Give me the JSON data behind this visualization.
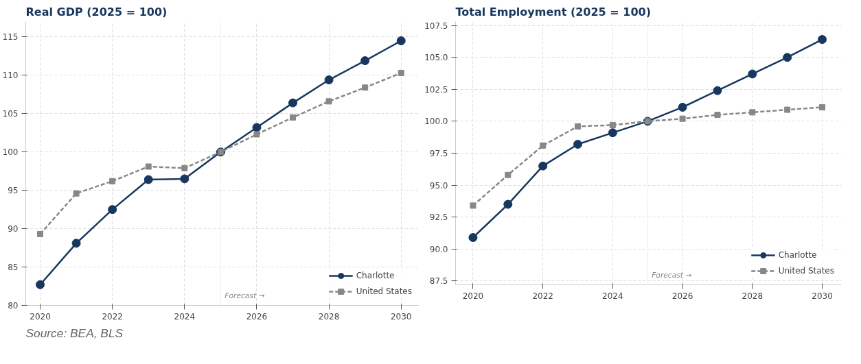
{
  "chart_data": [
    {
      "type": "line",
      "title": "Real GDP (2025 = 100)",
      "x": [
        2020,
        2021,
        2022,
        2023,
        2024,
        2025,
        2026,
        2027,
        2028,
        2029,
        2030
      ],
      "series": [
        {
          "name": "Charlotte",
          "color": "#17375e",
          "marker": "circle",
          "line_style": "solid",
          "values": [
            82.7,
            88.1,
            92.5,
            96.4,
            96.5,
            100,
            103.2,
            106.4,
            109.4,
            111.9,
            114.5
          ]
        },
        {
          "name": "United States",
          "color": "#878787",
          "marker": "square",
          "line_style": "dashed",
          "values": [
            89.3,
            94.6,
            96.2,
            98.1,
            97.9,
            100,
            102.3,
            104.5,
            106.6,
            108.4,
            110.3
          ]
        }
      ],
      "xlim": [
        2019.6,
        2030.5
      ],
      "ylim": [
        80,
        117
      ],
      "xticks": [
        2020,
        2022,
        2024,
        2026,
        2028,
        2030
      ],
      "yticks": [
        80,
        85,
        90,
        95,
        100,
        105,
        110,
        115
      ],
      "grid": true,
      "legend": "bottom right",
      "ref_lines": [
        {
          "axis": "x",
          "value": 2025,
          "label": "Forecast →",
          "color": "#bbbbbb",
          "line_style": "dotted"
        }
      ],
      "annotations": [
        "Source: BEA, BLS"
      ]
    },
    {
      "type": "line",
      "title": "Total Employment (2025 = 100)",
      "x": [
        2020,
        2021,
        2022,
        2023,
        2024,
        2025,
        2026,
        2027,
        2028,
        2029,
        2030
      ],
      "series": [
        {
          "name": "Charlotte",
          "color": "#17375e",
          "marker": "circle",
          "line_style": "solid",
          "values": [
            90.9,
            93.5,
            96.5,
            98.2,
            99.1,
            100,
            101.1,
            102.4,
            103.7,
            105.0,
            106.4
          ]
        },
        {
          "name": "United States",
          "color": "#878787",
          "marker": "square",
          "line_style": "dashed",
          "values": [
            93.4,
            95.8,
            98.1,
            99.6,
            99.7,
            100,
            100.2,
            100.5,
            100.7,
            100.9,
            101.1
          ]
        }
      ],
      "xlim": [
        2019.5,
        2030.55
      ],
      "ylim": [
        87.2,
        107.8
      ],
      "xticks": [
        2020,
        2022,
        2024,
        2026,
        2028,
        2030
      ],
      "yticks": [
        {
          "value": 87.5,
          "label": "87.5"
        },
        {
          "value": 90,
          "label": "90.0"
        },
        {
          "value": 92.5,
          "label": "92.5"
        },
        {
          "value": 95,
          "label": "95.0"
        },
        {
          "value": 97.5,
          "label": "97.5"
        },
        {
          "value": 100,
          "label": "100.0"
        },
        {
          "value": 102.5,
          "label": "102.5"
        },
        {
          "value": 105,
          "label": "105.0"
        },
        {
          "value": 107.5,
          "label": "107.5"
        }
      ],
      "grid": true,
      "legend": "bottom right",
      "ref_lines": [
        {
          "axis": "x",
          "value": 2025,
          "label": "Forecast →",
          "color": "#bbbbbb",
          "line_style": "dotted"
        }
      ]
    }
  ]
}
